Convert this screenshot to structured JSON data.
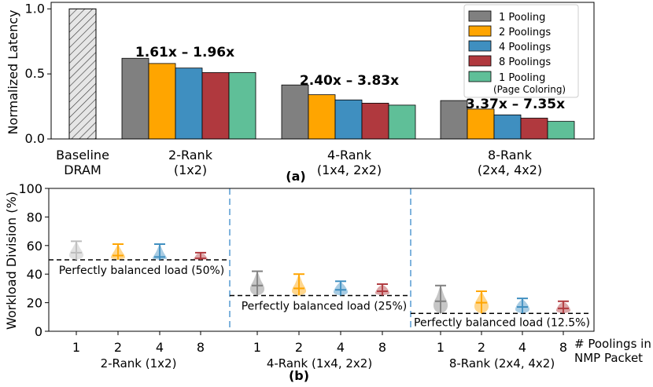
{
  "chart_data": [
    {
      "type": "bar",
      "panel_label": "(a)",
      "ylabel": "Normalized Latency",
      "ylim": [
        0,
        1.05
      ],
      "yticks": [
        "0.0",
        "0.5",
        "1.0"
      ],
      "baseline": {
        "label_line1": "Baseline",
        "label_line2": "DRAM",
        "value": 1.0
      },
      "groups": [
        {
          "label_line1": "2-Rank",
          "label_line2": "(1x2)",
          "speedup": "1.61x – 1.96x"
        },
        {
          "label_line1": "4-Rank",
          "label_line2": "(1x4, 2x2)",
          "speedup": "2.40x – 3.83x"
        },
        {
          "label_line1": "8-Rank",
          "label_line2": "(2x4, 4x2)",
          "speedup": "3.37x – 7.35x"
        }
      ],
      "series": [
        {
          "name": "1 Pooling",
          "color": "#808080",
          "values": [
            0.62,
            0.415,
            0.295
          ]
        },
        {
          "name": "2 Poolings",
          "color": "#ffa500",
          "values": [
            0.58,
            0.34,
            0.23
          ]
        },
        {
          "name": "4 Poolings",
          "color": "#3f8fc0",
          "values": [
            0.545,
            0.3,
            0.185
          ]
        },
        {
          "name": "8 Poolings",
          "color": "#b0393e",
          "values": [
            0.51,
            0.275,
            0.16
          ]
        },
        {
          "name": "1 Pooling",
          "name_line2": "(Page Coloring)",
          "color": "#5fbf98",
          "values": [
            0.51,
            0.26,
            0.135
          ]
        }
      ]
    },
    {
      "type": "violin",
      "panel_label": "(b)",
      "ylabel": "Workload Division (%)",
      "ylim": [
        0,
        100
      ],
      "yticks": [
        "0",
        "20",
        "40",
        "60",
        "80",
        "100"
      ],
      "xlabel_line1": "# Poolings in",
      "xlabel_line2": "NMP Packet",
      "groups": [
        {
          "label": "2-Rank (1x2)",
          "balanced_value": 50,
          "balanced_label": "Perfectly balanced load (50%)",
          "violins": [
            {
              "tick": "1",
              "min": 50,
              "median": 55,
              "max": 63,
              "color": "#bdbdbd"
            },
            {
              "tick": "2",
              "min": 50,
              "median": 53,
              "max": 61,
              "color": "#ffa500"
            },
            {
              "tick": "4",
              "min": 50,
              "median": 52,
              "max": 61,
              "color": "#3f8fc0"
            },
            {
              "tick": "8",
              "min": 50,
              "median": 51,
              "max": 55,
              "color": "#b0393e"
            }
          ]
        },
        {
          "label": "4-Rank (1x4, 2x2)",
          "balanced_value": 25,
          "balanced_label": "Perfectly balanced load (25%)",
          "violins": [
            {
              "tick": "1",
              "min": 25,
              "median": 32,
              "max": 42,
              "color": "#808080"
            },
            {
              "tick": "2",
              "min": 25,
              "median": 30,
              "max": 40,
              "color": "#ffa500"
            },
            {
              "tick": "4",
              "min": 25,
              "median": 29,
              "max": 35,
              "color": "#3f8fc0"
            },
            {
              "tick": "8",
              "min": 25,
              "median": 28,
              "max": 33,
              "color": "#b0393e"
            }
          ]
        },
        {
          "label": "8-Rank (2x4, 4x2)",
          "balanced_value": 12.5,
          "balanced_label": "Perfectly balanced load (12.5%)",
          "violins": [
            {
              "tick": "1",
              "min": 12.5,
              "median": 21,
              "max": 32,
              "color": "#808080"
            },
            {
              "tick": "2",
              "min": 12.5,
              "median": 20,
              "max": 28,
              "color": "#ffa500"
            },
            {
              "tick": "4",
              "min": 12.5,
              "median": 17,
              "max": 23,
              "color": "#3f8fc0"
            },
            {
              "tick": "8",
              "min": 12.5,
              "median": 16,
              "max": 21,
              "color": "#b0393e"
            }
          ]
        }
      ]
    }
  ]
}
